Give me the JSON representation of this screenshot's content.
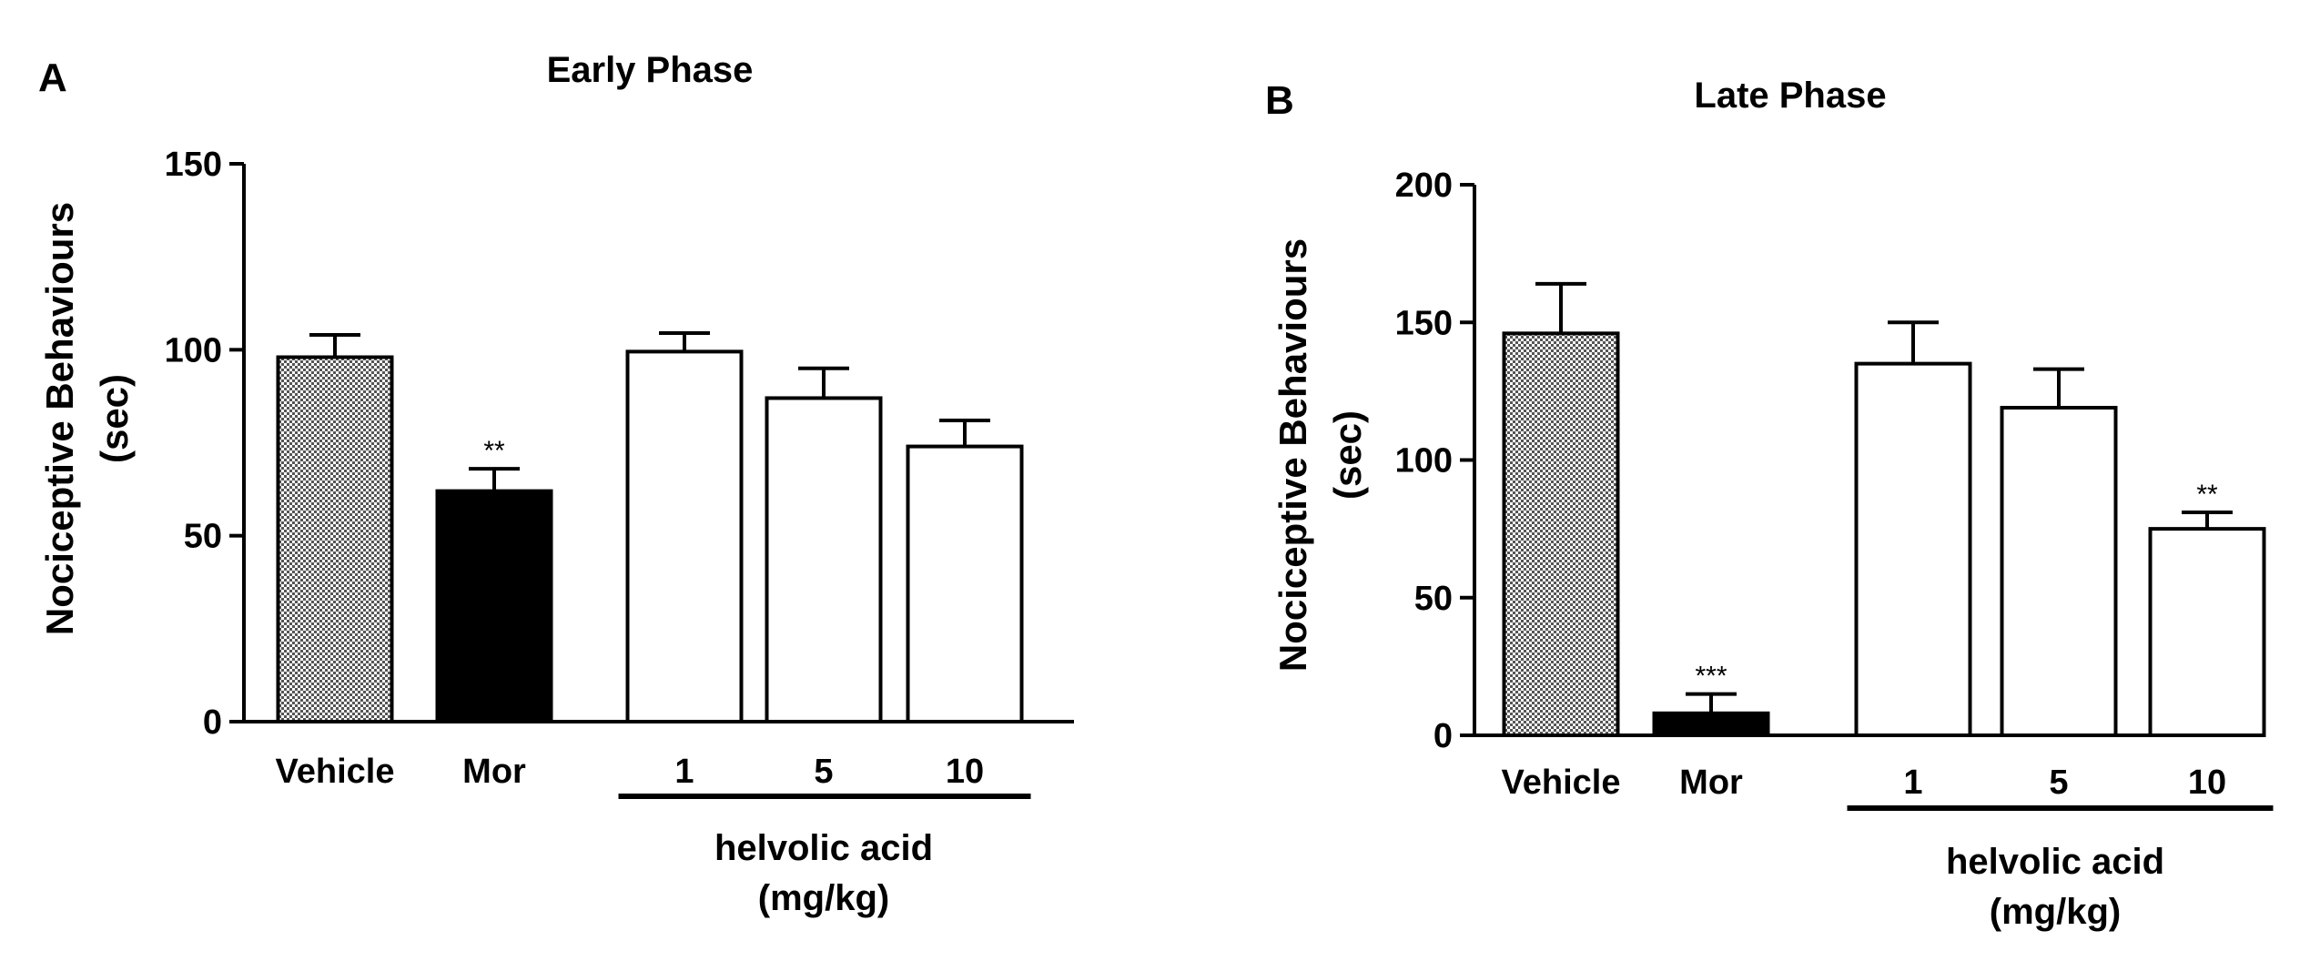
{
  "chart_data": [
    {
      "type": "bar",
      "panel": "A",
      "title": "Early Phase",
      "ylabel": [
        "Nociceptive Behaviours",
        "(sec)"
      ],
      "ylim": [
        0,
        150
      ],
      "yticks": [
        0,
        50,
        100,
        150
      ],
      "categories": [
        "Vehicle",
        "Mor",
        "1",
        "5",
        "10"
      ],
      "values": [
        98,
        62,
        99.5,
        87,
        74
      ],
      "errors": [
        6,
        6,
        5,
        8,
        7
      ],
      "fills": [
        "pattern",
        "black",
        "white",
        "white",
        "white"
      ],
      "significance": [
        "",
        "**",
        "",
        "",
        ""
      ],
      "group": {
        "label": [
          "helvolic acid",
          "(mg/kg)"
        ],
        "from": 2,
        "to": 4
      }
    },
    {
      "type": "bar",
      "panel": "B",
      "title": "Late Phase",
      "ylabel": [
        "Nociceptive Behaviours",
        "(sec)"
      ],
      "ylim": [
        0,
        200
      ],
      "yticks": [
        0,
        50,
        100,
        150,
        200
      ],
      "categories": [
        "Vehicle",
        "Mor",
        "1",
        "5",
        "10"
      ],
      "values": [
        146,
        8,
        135,
        119,
        75
      ],
      "errors": [
        18,
        7,
        15,
        14,
        6
      ],
      "fills": [
        "pattern",
        "black",
        "white",
        "white",
        "white"
      ],
      "significance": [
        "",
        "***",
        "",
        "",
        "**"
      ],
      "group": {
        "label": [
          "helvolic acid",
          "(mg/kg)"
        ],
        "from": 2,
        "to": 4
      }
    }
  ]
}
